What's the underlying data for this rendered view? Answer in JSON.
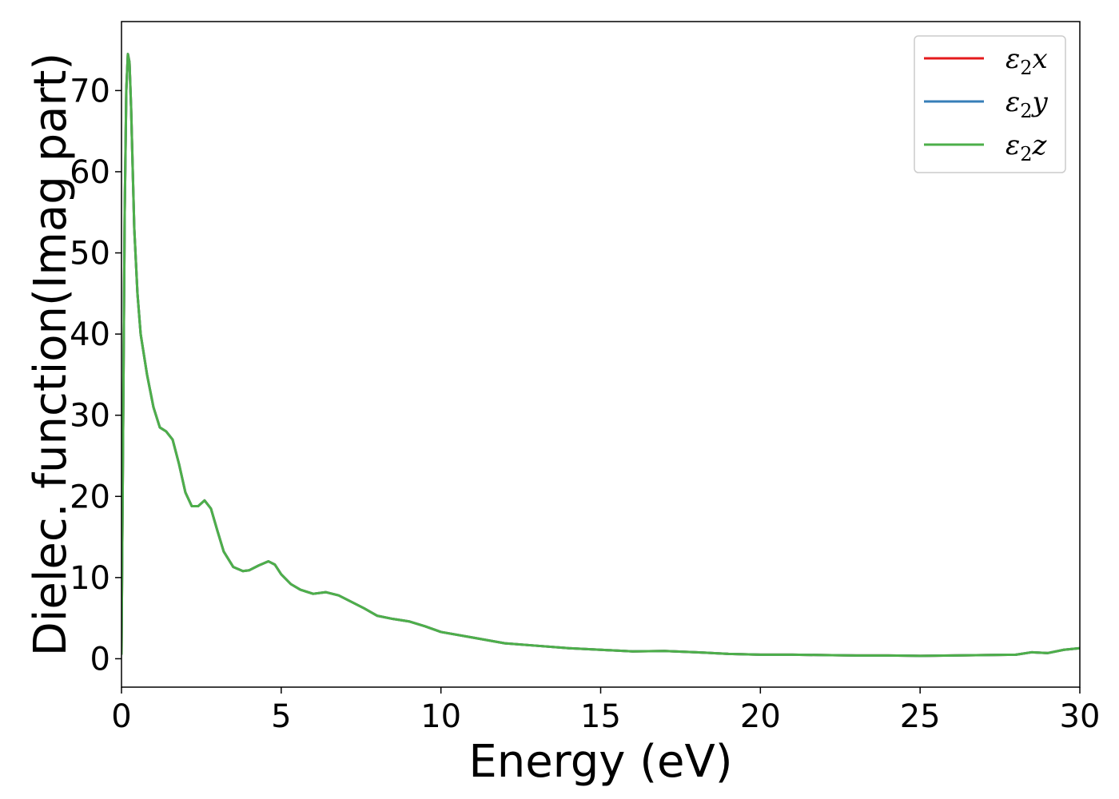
{
  "chart_data": {
    "type": "line",
    "title": "",
    "xlabel": "Energy (eV)",
    "ylabel": "Dielec. function(Imag part)",
    "xlim": [
      0,
      30
    ],
    "ylim": [
      -3.5,
      78.5
    ],
    "xticks": [
      0,
      5,
      10,
      15,
      20,
      25,
      30
    ],
    "yticks": [
      0,
      10,
      20,
      30,
      40,
      50,
      60,
      70
    ],
    "grid": false,
    "legend_position": "top-right",
    "x": [
      0,
      0.05,
      0.1,
      0.15,
      0.2,
      0.25,
      0.3,
      0.4,
      0.5,
      0.6,
      0.8,
      1.0,
      1.2,
      1.4,
      1.6,
      1.8,
      2.0,
      2.2,
      2.4,
      2.6,
      2.8,
      3.0,
      3.2,
      3.5,
      3.8,
      4.0,
      4.3,
      4.6,
      4.8,
      5.0,
      5.3,
      5.6,
      6.0,
      6.4,
      6.8,
      7.2,
      7.6,
      8.0,
      8.5,
      9.0,
      9.5,
      10.0,
      11.0,
      12.0,
      13.0,
      14.0,
      15.0,
      16.0,
      17.0,
      18.0,
      19.0,
      20.0,
      21.0,
      22.0,
      23.0,
      24.0,
      25.0,
      26.0,
      27.0,
      28.0,
      28.5,
      29.0,
      29.5,
      30.0
    ],
    "series": [
      {
        "name": "ε₂x",
        "color": "#e41a1c",
        "values": [
          0.5,
          28.0,
          55.0,
          70.0,
          74.5,
          73.5,
          68.0,
          53.0,
          45.0,
          40.0,
          35.0,
          31.0,
          28.5,
          28.0,
          27.0,
          24.0,
          20.5,
          18.8,
          18.8,
          19.5,
          18.5,
          15.8,
          13.2,
          11.3,
          10.8,
          10.9,
          11.5,
          12.0,
          11.6,
          10.4,
          9.2,
          8.5,
          8.0,
          8.2,
          7.8,
          7.0,
          6.2,
          5.3,
          4.9,
          4.6,
          4.0,
          3.3,
          2.6,
          1.9,
          1.6,
          1.3,
          1.1,
          0.9,
          0.95,
          0.8,
          0.6,
          0.5,
          0.5,
          0.45,
          0.4,
          0.4,
          0.35,
          0.4,
          0.45,
          0.5,
          0.8,
          0.7,
          1.1,
          1.3
        ]
      },
      {
        "name": "ε₂y",
        "color": "#377eb8",
        "values": [
          0.5,
          28.0,
          55.0,
          70.0,
          74.5,
          73.5,
          68.0,
          53.0,
          45.0,
          40.0,
          35.0,
          31.0,
          28.5,
          28.0,
          27.0,
          24.0,
          20.5,
          18.8,
          18.8,
          19.5,
          18.5,
          15.8,
          13.2,
          11.3,
          10.8,
          10.9,
          11.5,
          12.0,
          11.6,
          10.4,
          9.2,
          8.5,
          8.0,
          8.2,
          7.8,
          7.0,
          6.2,
          5.3,
          4.9,
          4.6,
          4.0,
          3.3,
          2.6,
          1.9,
          1.6,
          1.3,
          1.1,
          0.9,
          0.95,
          0.8,
          0.6,
          0.5,
          0.5,
          0.45,
          0.4,
          0.4,
          0.35,
          0.4,
          0.45,
          0.5,
          0.8,
          0.7,
          1.1,
          1.3
        ]
      },
      {
        "name": "ε₂z",
        "color": "#4daf4a",
        "values": [
          0.5,
          28.0,
          55.0,
          70.0,
          74.5,
          73.5,
          68.0,
          53.0,
          45.0,
          40.0,
          35.0,
          31.0,
          28.5,
          28.0,
          27.0,
          24.0,
          20.5,
          18.8,
          18.8,
          19.5,
          18.5,
          15.8,
          13.2,
          11.3,
          10.8,
          10.9,
          11.5,
          12.0,
          11.6,
          10.4,
          9.2,
          8.5,
          8.0,
          8.2,
          7.8,
          7.0,
          6.2,
          5.3,
          4.9,
          4.6,
          4.0,
          3.3,
          2.6,
          1.9,
          1.6,
          1.3,
          1.1,
          0.9,
          0.95,
          0.8,
          0.6,
          0.5,
          0.5,
          0.45,
          0.4,
          0.4,
          0.35,
          0.4,
          0.45,
          0.5,
          0.8,
          0.7,
          1.1,
          1.3
        ]
      }
    ],
    "legend": [
      {
        "base": "ε",
        "sub": "2",
        "comp": "x"
      },
      {
        "base": "ε",
        "sub": "2",
        "comp": "y"
      },
      {
        "base": "ε",
        "sub": "2",
        "comp": "z"
      }
    ]
  }
}
